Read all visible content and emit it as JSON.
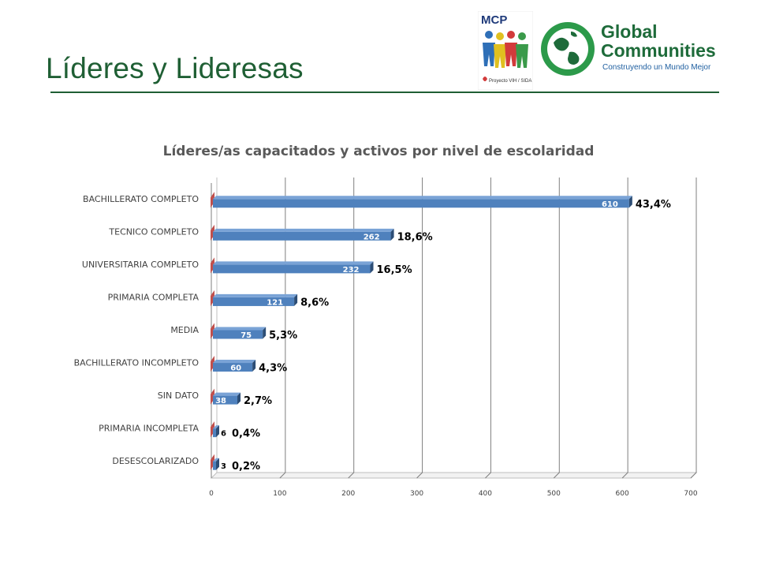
{
  "slide": {
    "title": "Líderes y Lideresas"
  },
  "logos": {
    "mcp": {
      "text": "MCP",
      "subtext": "Proyecto VIH / SIDA"
    },
    "global_communities": {
      "line1": "Global",
      "line2": "Communities",
      "tagline": "Construyendo un Mundo Mejor"
    }
  },
  "colors": {
    "title_green": "#1f5f34",
    "bar_blue": "#4f81bd",
    "bar_blue_dark": "#2c4d75",
    "red_sliver": "#c0504d"
  },
  "chart_data": {
    "type": "bar",
    "orientation": "horizontal",
    "title": "Líderes/as capacitados y activos por nivel de escolaridad",
    "categories": [
      "BACHILLERATO COMPLETO",
      "TECNICO COMPLETO",
      "UNIVERSITARIA COMPLETO",
      "PRIMARIA COMPLETA",
      "MEDIA",
      "BACHILLERATO INCOMPLETO",
      "SIN DATO",
      "PRIMARIA INCOMPLETA",
      "DESESCOLARIZADO"
    ],
    "series": [
      {
        "values": [
          610,
          262,
          232,
          121,
          75,
          60,
          38,
          6,
          3
        ],
        "value_labels": [
          "610",
          "262",
          "232",
          "121",
          "75",
          "60",
          "38",
          "6",
          "3"
        ],
        "percent_labels": [
          "43,4%",
          "18,6%",
          "16,5%",
          "8,6%",
          "5,3%",
          "4,3%",
          "2,7%",
          "0,4%",
          "0,2%"
        ]
      }
    ],
    "xlim": [
      0,
      700
    ],
    "xticks": [
      0,
      100,
      200,
      300,
      400,
      500,
      600,
      700
    ],
    "gridlines": true,
    "legend": false
  }
}
